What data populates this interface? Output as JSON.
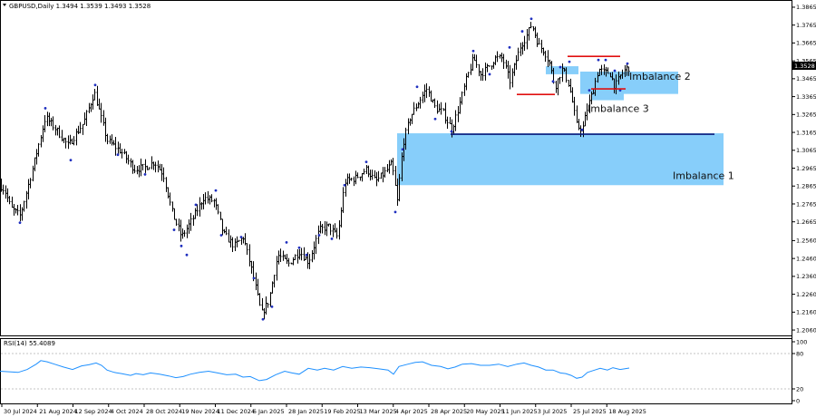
{
  "chart_data": [
    {
      "type": "line",
      "title": "GBPUSD,Daily  1.3494 1.3539 1.3493 1.3528",
      "symbol": "GBPUSD",
      "timeframe": "Daily",
      "ohlc": {
        "open": 1.3494,
        "high": 1.3539,
        "low": 1.3493,
        "close": 1.3528
      },
      "current_price_label": "1.3528",
      "ylim": [
        1.204,
        1.3885
      ],
      "y_ticks": [
        "1.3865",
        "1.3765",
        "1.3665",
        "1.3565",
        "1.3465",
        "1.3365",
        "1.3265",
        "1.3165",
        "1.3065",
        "1.2965",
        "1.2865",
        "1.2765",
        "1.2665",
        "1.2560",
        "1.2460",
        "1.2360",
        "1.2260",
        "1.2160",
        "1.2060"
      ],
      "x_ticks": [
        "30 Jul 2024",
        "21 Aug 2024",
        "12 Sep 2024",
        "4 Oct 2024",
        "28 Oct 2024",
        "19 Nov 2024",
        "11 Dec 2024",
        "6 Jan 2025",
        "28 Jan 2025",
        "19 Feb 2025",
        "13 Mar 2025",
        "4 Apr 2025",
        "28 Apr 2025",
        "20 May 2025",
        "11 Jun 2025",
        "3 Jul 2025",
        "25 Jul 2025",
        "18 Aug 2025"
      ],
      "price_path": [
        [
          0,
          1.287
        ],
        [
          5,
          1.284
        ],
        [
          12,
          1.274
        ],
        [
          22,
          1.27
        ],
        [
          38,
          1.301
        ],
        [
          50,
          1.325
        ],
        [
          62,
          1.318
        ],
        [
          75,
          1.309
        ],
        [
          92,
          1.322
        ],
        [
          104,
          1.339
        ],
        [
          110,
          1.327
        ],
        [
          118,
          1.312
        ],
        [
          133,
          1.306
        ],
        [
          148,
          1.296
        ],
        [
          160,
          1.297
        ],
        [
          170,
          1.3
        ],
        [
          180,
          1.293
        ],
        [
          190,
          1.271
        ],
        [
          200,
          1.258
        ],
        [
          212,
          1.268
        ],
        [
          224,
          1.28
        ],
        [
          236,
          1.278
        ],
        [
          246,
          1.26
        ],
        [
          258,
          1.253
        ],
        [
          268,
          1.258
        ],
        [
          278,
          1.238
        ],
        [
          288,
          1.215
        ],
        [
          296,
          1.222
        ],
        [
          306,
          1.248
        ],
        [
          318,
          1.243
        ],
        [
          330,
          1.25
        ],
        [
          340,
          1.244
        ],
        [
          352,
          1.262
        ],
        [
          362,
          1.264
        ],
        [
          372,
          1.258
        ],
        [
          380,
          1.289
        ],
        [
          392,
          1.291
        ],
        [
          404,
          1.296
        ],
        [
          414,
          1.289
        ],
        [
          424,
          1.294
        ],
        [
          432,
          1.299
        ],
        [
          438,
          1.278
        ],
        [
          444,
          1.31
        ],
        [
          452,
          1.325
        ],
        [
          462,
          1.334
        ],
        [
          470,
          1.341
        ],
        [
          480,
          1.33
        ],
        [
          488,
          1.328
        ],
        [
          498,
          1.318
        ],
        [
          506,
          1.331
        ],
        [
          514,
          1.346
        ],
        [
          522,
          1.358
        ],
        [
          530,
          1.349
        ],
        [
          538,
          1.353
        ],
        [
          546,
          1.358
        ],
        [
          554,
          1.358
        ],
        [
          562,
          1.345
        ],
        [
          568,
          1.355
        ],
        [
          574,
          1.365
        ],
        [
          580,
          1.37
        ],
        [
          586,
          1.377
        ],
        [
          594,
          1.365
        ],
        [
          600,
          1.362
        ],
        [
          606,
          1.355
        ],
        [
          612,
          1.342
        ],
        [
          620,
          1.352
        ],
        [
          626,
          1.345
        ],
        [
          630,
          1.337
        ],
        [
          636,
          1.32
        ],
        [
          642,
          1.318
        ],
        [
          648,
          1.331
        ],
        [
          654,
          1.34
        ],
        [
          660,
          1.352
        ],
        [
          666,
          1.35
        ],
        [
          672,
          1.35
        ],
        [
          678,
          1.342
        ],
        [
          684,
          1.348
        ],
        [
          690,
          1.352
        ],
        [
          694,
          1.3528
        ]
      ],
      "highlight_points": [
        [
          22,
          1.266
        ],
        [
          50,
          1.33
        ],
        [
          78,
          1.301
        ],
        [
          105,
          1.343
        ],
        [
          130,
          1.304
        ],
        [
          160,
          1.293
        ],
        [
          192,
          1.262
        ],
        [
          200,
          1.253
        ],
        [
          206,
          1.248
        ],
        [
          216,
          1.276
        ],
        [
          238,
          1.284
        ],
        [
          244,
          1.259
        ],
        [
          266,
          1.258
        ],
        [
          280,
          1.235
        ],
        [
          290,
          1.212
        ],
        [
          300,
          1.219
        ],
        [
          316,
          1.255
        ],
        [
          330,
          1.252
        ],
        [
          338,
          1.248
        ],
        [
          352,
          1.259
        ],
        [
          366,
          1.257
        ],
        [
          380,
          1.287
        ],
        [
          404,
          1.3
        ],
        [
          436,
          1.272
        ],
        [
          444,
          1.307
        ],
        [
          460,
          1.342
        ],
        [
          480,
          1.324
        ],
        [
          498,
          1.317
        ],
        [
          522,
          1.362
        ],
        [
          540,
          1.349
        ],
        [
          562,
          1.364
        ],
        [
          576,
          1.373
        ],
        [
          586,
          1.38
        ],
        [
          610,
          1.345
        ],
        [
          618,
          1.353
        ],
        [
          628,
          1.356
        ],
        [
          642,
          1.318
        ],
        [
          650,
          1.34
        ],
        [
          660,
          1.357
        ],
        [
          668,
          1.357
        ],
        [
          678,
          1.351
        ],
        [
          684,
          1.34
        ],
        [
          692,
          1.355
        ]
      ],
      "zones": [
        {
          "name": "Imbalance 1",
          "x_from": 438,
          "x_to": 798,
          "y_from": 1.287,
          "y_to": 1.316,
          "label": "Imbalance 1"
        },
        {
          "name": "Imbalance 2",
          "x_from": 640,
          "x_to": 748,
          "y_from": 1.338,
          "y_to": 1.3505,
          "label": "Imbalance 2"
        },
        {
          "name": "Imbalance 2 upper",
          "x_from": 602,
          "x_to": 638,
          "y_from": 1.349,
          "y_to": 1.3535,
          "label": ""
        },
        {
          "name": "Imbalance 3",
          "x_from": 652,
          "x_to": 688,
          "y_from": 1.3345,
          "y_to": 1.339,
          "label": "Imbalance 3"
        }
      ],
      "lines": [
        {
          "name": "support",
          "color": "#0d1a7a",
          "x1": 497,
          "x2": 788,
          "y": 1.3155
        },
        {
          "name": "resistance-1",
          "color": "#e01010",
          "x1": 570,
          "x2": 612,
          "y": 1.3377
        },
        {
          "name": "resistance-2",
          "color": "#e01010",
          "x1": 626,
          "x2": 684,
          "y": 1.359
        },
        {
          "name": "resistance-3",
          "color": "#e01010",
          "x1": 652,
          "x2": 690,
          "y": 1.3408
        }
      ],
      "zone_labels": [
        {
          "text": "Imbalance 2",
          "x": 694,
          "y": 1.346
        },
        {
          "text": "Imbalance 3",
          "x": 648,
          "y": 1.328
        },
        {
          "text": "Imbalance 1",
          "x": 742,
          "y": 1.2905
        }
      ]
    },
    {
      "type": "line",
      "title": "RSI(14) 55.4089",
      "indicator": "RSI(14)",
      "value": 55.4089,
      "ylim": [
        0,
        100
      ],
      "y_ticks": [
        "100",
        "80",
        "20",
        "0"
      ],
      "levels": [
        80,
        20
      ],
      "series": [
        [
          0,
          50
        ],
        [
          10,
          49
        ],
        [
          20,
          48
        ],
        [
          30,
          53
        ],
        [
          40,
          62
        ],
        [
          45,
          68
        ],
        [
          52,
          66
        ],
        [
          60,
          62
        ],
        [
          70,
          57
        ],
        [
          80,
          53
        ],
        [
          90,
          59
        ],
        [
          98,
          61
        ],
        [
          106,
          64
        ],
        [
          112,
          60
        ],
        [
          118,
          52
        ],
        [
          126,
          48
        ],
        [
          134,
          46
        ],
        [
          144,
          43
        ],
        [
          150,
          46
        ],
        [
          158,
          44
        ],
        [
          166,
          47
        ],
        [
          176,
          45
        ],
        [
          186,
          42
        ],
        [
          194,
          39
        ],
        [
          202,
          41
        ],
        [
          210,
          45
        ],
        [
          220,
          48
        ],
        [
          230,
          50
        ],
        [
          240,
          47
        ],
        [
          250,
          44
        ],
        [
          260,
          45
        ],
        [
          268,
          40
        ],
        [
          276,
          41
        ],
        [
          286,
          34
        ],
        [
          294,
          36
        ],
        [
          304,
          44
        ],
        [
          314,
          50
        ],
        [
          322,
          47
        ],
        [
          330,
          45
        ],
        [
          340,
          55
        ],
        [
          350,
          52
        ],
        [
          358,
          55
        ],
        [
          368,
          52
        ],
        [
          378,
          58
        ],
        [
          388,
          55
        ],
        [
          398,
          57
        ],
        [
          408,
          56
        ],
        [
          418,
          54
        ],
        [
          428,
          52
        ],
        [
          434,
          45
        ],
        [
          440,
          58
        ],
        [
          450,
          62
        ],
        [
          458,
          65
        ],
        [
          466,
          66
        ],
        [
          476,
          60
        ],
        [
          486,
          58
        ],
        [
          494,
          54
        ],
        [
          502,
          57
        ],
        [
          510,
          62
        ],
        [
          520,
          63
        ],
        [
          530,
          60
        ],
        [
          540,
          60
        ],
        [
          550,
          62
        ],
        [
          560,
          58
        ],
        [
          570,
          62
        ],
        [
          578,
          64
        ],
        [
          586,
          60
        ],
        [
          594,
          57
        ],
        [
          602,
          52
        ],
        [
          610,
          52
        ],
        [
          618,
          47
        ],
        [
          624,
          46
        ],
        [
          630,
          43
        ],
        [
          636,
          38
        ],
        [
          642,
          40
        ],
        [
          648,
          48
        ],
        [
          656,
          52
        ],
        [
          662,
          55
        ],
        [
          670,
          52
        ],
        [
          676,
          56
        ],
        [
          684,
          53
        ],
        [
          694,
          55.4
        ]
      ]
    }
  ]
}
